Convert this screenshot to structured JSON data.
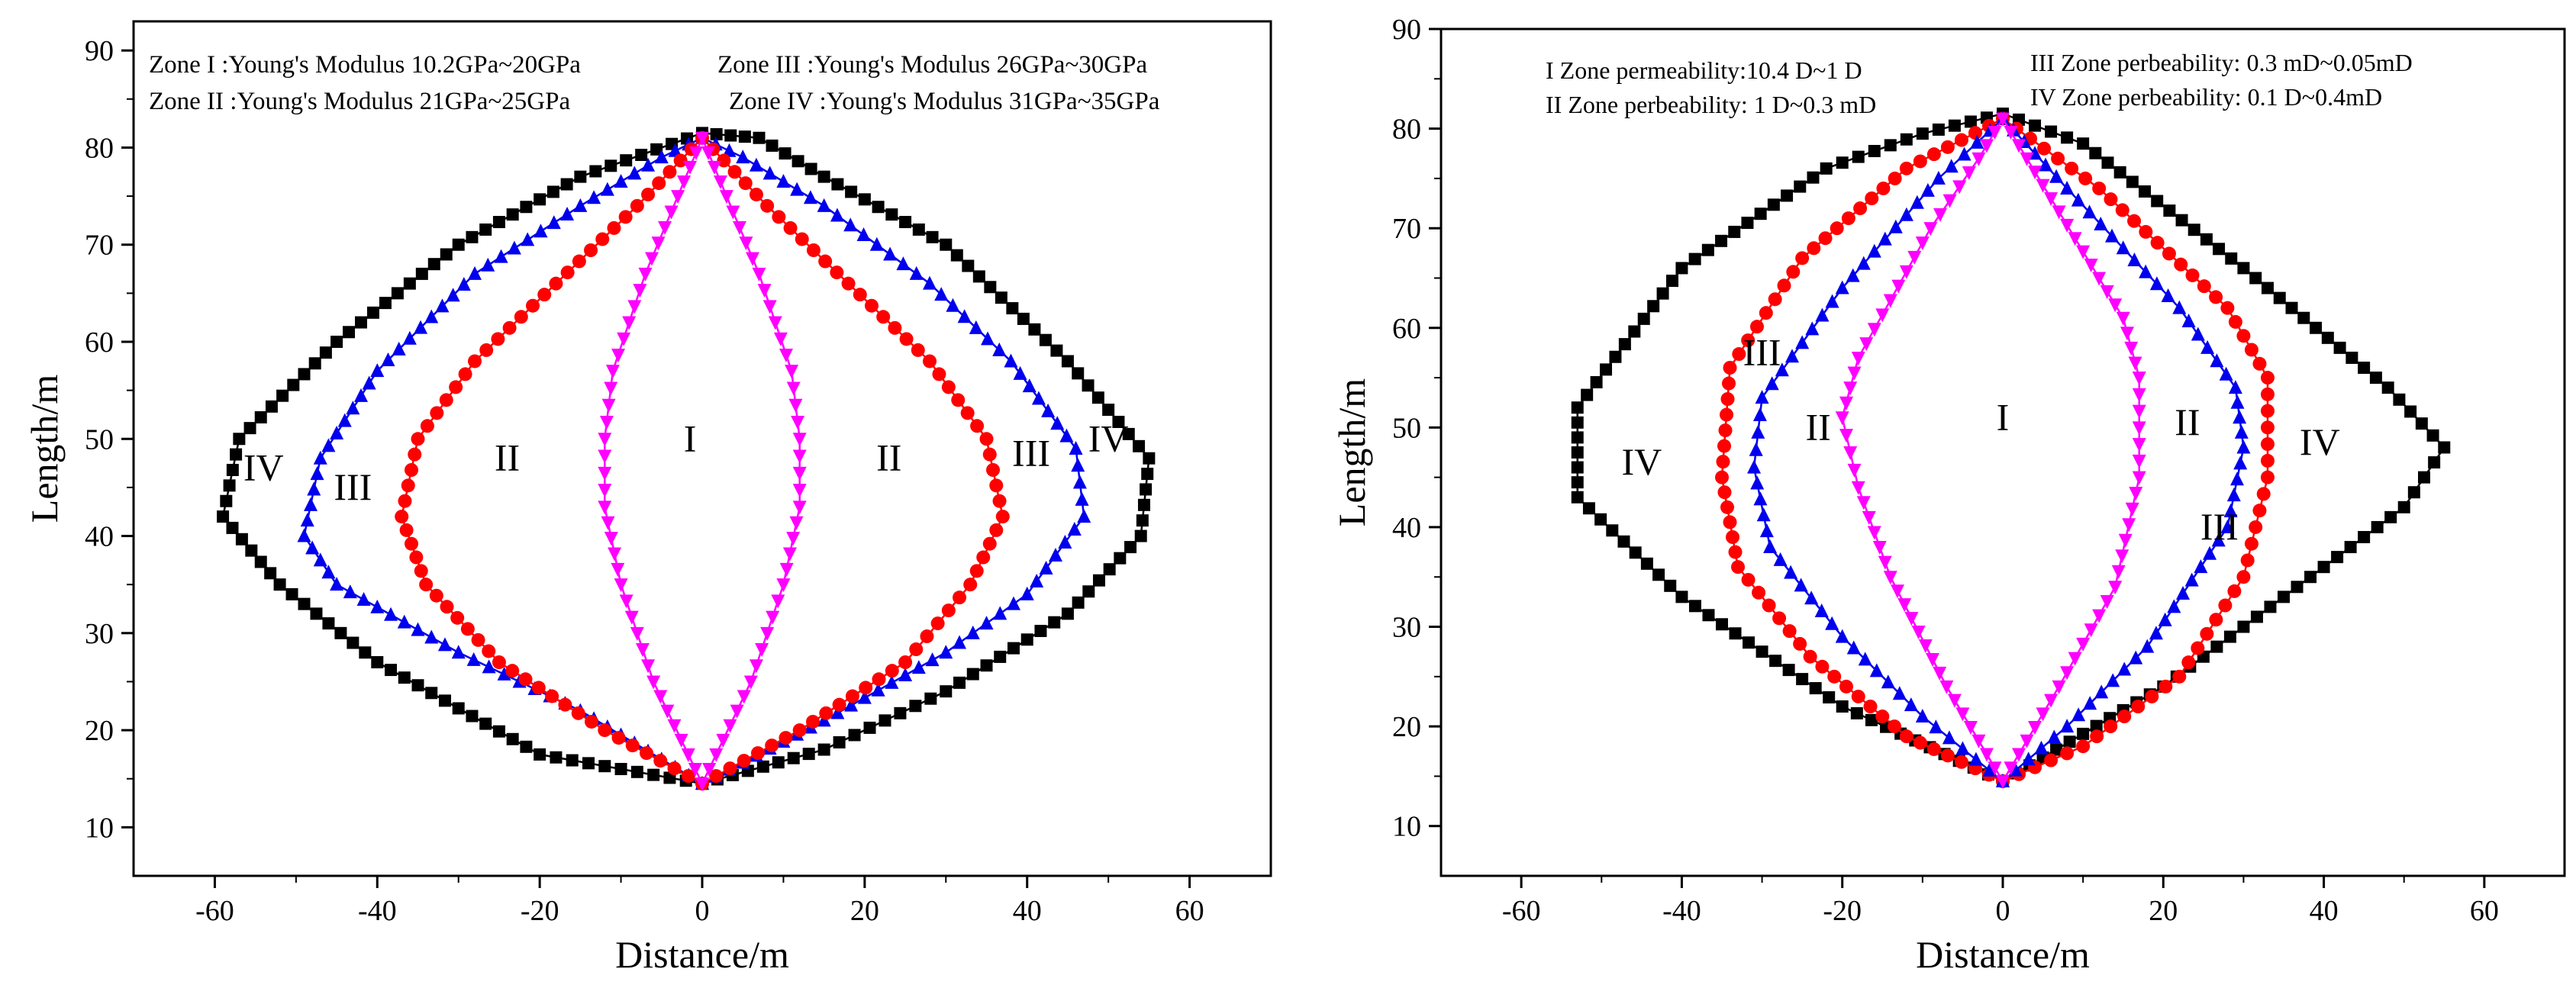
{
  "chart_data": [
    {
      "type": "scatter",
      "xlabel": "Distance/m",
      "ylabel": "Length/m",
      "xlim": [
        -70,
        70
      ],
      "ylim": [
        5,
        93
      ],
      "xticks": [
        "-60",
        "-40",
        "-20",
        "0",
        "20",
        "40",
        "60"
      ],
      "yticks": [
        "10",
        "20",
        "30",
        "40",
        "50",
        "60",
        "70",
        "80",
        "90"
      ],
      "annotations": [
        "Zone I :Young's Modulus 10.2GPa~20GPa",
        "Zone II :Young's Modulus 21GPa~25GPa",
        "Zone III :Young's Modulus 26GPa~30GPa",
        "Zone IV :Young's Modulus 31GPa~35GPa"
      ],
      "zone_labels": [
        {
          "text": "IV",
          "x": -54,
          "y": 47
        },
        {
          "text": "III",
          "x": -43,
          "y": 45
        },
        {
          "text": "II",
          "x": -24,
          "y": 48
        },
        {
          "text": "I",
          "x": -1.5,
          "y": 50
        },
        {
          "text": "II",
          "x": 23,
          "y": 48
        },
        {
          "text": "III",
          "x": 40.5,
          "y": 48.5
        },
        {
          "text": "IV",
          "x": 50,
          "y": 50
        }
      ],
      "series": [
        {
          "marker": "square",
          "color": "#000000",
          "points": [
            [
              0,
              14.5
            ],
            [
              -20,
              17.5
            ],
            [
              -40,
              27
            ],
            [
              -52,
              35
            ],
            [
              -59,
              42
            ],
            [
              -57,
              50
            ],
            [
              -45,
              60
            ],
            [
              -30,
              70
            ],
            [
              -15,
              77
            ],
            [
              0,
              81.5
            ],
            [
              7,
              81
            ],
            [
              15,
              77
            ],
            [
              30,
              70
            ],
            [
              45,
              58
            ],
            [
              55,
              48
            ],
            [
              54,
              40
            ],
            [
              45,
              32
            ],
            [
              30,
              24
            ],
            [
              15,
              18
            ],
            [
              0,
              14.5
            ]
          ]
        },
        {
          "marker": "triangle-up",
          "color": "#0000ee",
          "points": [
            [
              0,
              14.5
            ],
            [
              -15,
              22
            ],
            [
              -30,
              28
            ],
            [
              -45,
              35
            ],
            [
              -49,
              40
            ],
            [
              -47,
              48
            ],
            [
              -40,
              57
            ],
            [
              -28,
              67
            ],
            [
              -15,
              74
            ],
            [
              -5,
              79
            ],
            [
              0,
              81
            ],
            [
              5,
              79
            ],
            [
              15,
              74
            ],
            [
              28,
              66
            ],
            [
              38,
              58
            ],
            [
              46,
              49
            ],
            [
              47,
              42
            ],
            [
              40,
              34
            ],
            [
              30,
              28
            ],
            [
              15,
              21
            ],
            [
              0,
              14.5
            ]
          ]
        },
        {
          "marker": "circle",
          "color": "#ff0000",
          "points": [
            [
              0,
              14.5
            ],
            [
              -12,
              20
            ],
            [
              -25,
              27
            ],
            [
              -34,
              35
            ],
            [
              -37,
              42
            ],
            [
              -35,
              50
            ],
            [
              -28,
              58
            ],
            [
              -18,
              66
            ],
            [
              -8,
              74
            ],
            [
              0,
              81
            ],
            [
              8,
              74
            ],
            [
              18,
              66
            ],
            [
              28,
              58
            ],
            [
              35,
              50
            ],
            [
              37,
              42
            ],
            [
              33,
              35
            ],
            [
              25,
              27
            ],
            [
              12,
              20
            ],
            [
              0,
              14.5
            ]
          ]
        },
        {
          "marker": "triangle-down",
          "color": "#ff00ff",
          "points": [
            [
              0,
              14.5
            ],
            [
              -6,
              25
            ],
            [
              -10,
              35
            ],
            [
              -12,
              43
            ],
            [
              -12,
              50
            ],
            [
              -11,
              57
            ],
            [
              -7,
              67
            ],
            [
              -3,
              75
            ],
            [
              0,
              81
            ],
            [
              3,
              75
            ],
            [
              7,
              67
            ],
            [
              11,
              57
            ],
            [
              12,
              50
            ],
            [
              12,
              43
            ],
            [
              10,
              35
            ],
            [
              6,
              25
            ],
            [
              0,
              14.5
            ]
          ]
        }
      ]
    },
    {
      "type": "scatter",
      "xlabel": "Distance/m",
      "ylabel": "Length/m",
      "xlim": [
        -70,
        70
      ],
      "ylim": [
        5,
        90
      ],
      "xticks": [
        "-60",
        "-40",
        "-20",
        "0",
        "20",
        "40",
        "60"
      ],
      "yticks": [
        "10",
        "20",
        "30",
        "40",
        "50",
        "60",
        "70",
        "80",
        "90"
      ],
      "annotations": [
        "I Zone permeability:10.4 D~1 D",
        "II Zone perbeability: 1 D~0.3 mD",
        "III Zone perbeability: 0.3 mD~0.05mD",
        "IV Zone perbeability: 0.1 D~0.4mD"
      ],
      "zone_labels": [
        {
          "text": "IV",
          "x": -45,
          "y": 46.5
        },
        {
          "text": "III",
          "x": -30,
          "y": 57.5
        },
        {
          "text": "II",
          "x": -23,
          "y": 50
        },
        {
          "text": "I",
          "x": 0,
          "y": 51
        },
        {
          "text": "II",
          "x": 23,
          "y": 50.5
        },
        {
          "text": "IV",
          "x": 39.5,
          "y": 48.5
        },
        {
          "text": "III",
          "x": 27,
          "y": 40
        }
      ],
      "series": [
        {
          "marker": "square",
          "color": "#000000",
          "points": [
            [
              0,
              14.5
            ],
            [
              -20,
              22
            ],
            [
              -40,
              33
            ],
            [
              -53,
              43
            ],
            [
              -53,
              52
            ],
            [
              -40,
              66
            ],
            [
              -22,
              76
            ],
            [
              -10,
              79.5
            ],
            [
              0,
              81.5
            ],
            [
              10,
              78.5
            ],
            [
              30,
              66
            ],
            [
              48,
              54
            ],
            [
              55,
              48
            ],
            [
              50,
              42
            ],
            [
              35,
              33
            ],
            [
              20,
              24
            ],
            [
              0,
              14.5
            ]
          ]
        },
        {
          "marker": "circle",
          "color": "#ff0000",
          "points": [
            [
              0,
              14.5
            ],
            [
              -12,
              19
            ],
            [
              -24,
              27
            ],
            [
              -33,
              36
            ],
            [
              -35,
              45
            ],
            [
              -34,
              56
            ],
            [
              -25,
              67
            ],
            [
              -12,
              76
            ],
            [
              0,
              81
            ],
            [
              12,
              74
            ],
            [
              28,
              62
            ],
            [
              33,
              55
            ],
            [
              33,
              45
            ],
            [
              30,
              35
            ],
            [
              22,
              25
            ],
            [
              10,
              18
            ],
            [
              0,
              14.5
            ]
          ]
        },
        {
          "marker": "triangle-up",
          "color": "#0000ee",
          "points": [
            [
              0,
              14.5
            ],
            [
              -10,
              21
            ],
            [
              -20,
              29
            ],
            [
              -29,
              38
            ],
            [
              -31,
              46
            ],
            [
              -30,
              53
            ],
            [
              -20,
              64
            ],
            [
              -8,
              75
            ],
            [
              0,
              81
            ],
            [
              8,
              74
            ],
            [
              22,
              62
            ],
            [
              29,
              54
            ],
            [
              30,
              48
            ],
            [
              28,
              40
            ],
            [
              18,
              28
            ],
            [
              8,
              20
            ],
            [
              0,
              14.5
            ]
          ]
        },
        {
          "marker": "triangle-down",
          "color": "#ff00ff",
          "points": [
            [
              0,
              14.5
            ],
            [
              -7,
              24
            ],
            [
              -14,
              35
            ],
            [
              -18,
              44
            ],
            [
              -20,
              51
            ],
            [
              -18,
              57
            ],
            [
              -9,
              70
            ],
            [
              -3,
              77
            ],
            [
              0,
              81
            ],
            [
              3,
              77
            ],
            [
              9,
              69
            ],
            [
              15,
              61
            ],
            [
              17,
              55
            ],
            [
              17,
              45
            ],
            [
              14,
              34
            ],
            [
              7,
              24
            ],
            [
              0,
              14.5
            ]
          ]
        }
      ]
    }
  ]
}
